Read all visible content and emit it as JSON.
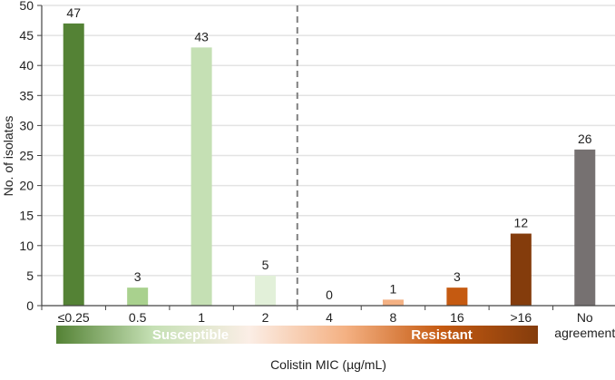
{
  "chart_data": {
    "type": "bar",
    "title": "",
    "xlabel": "Colistin MIC (µg/mL)",
    "ylabel": "No. of isolates",
    "ylim": [
      0,
      50
    ],
    "yticks": [
      0,
      5,
      10,
      15,
      20,
      25,
      30,
      35,
      40,
      45,
      50
    ],
    "grid": true,
    "categories": [
      "≤0.25",
      "0.5",
      "1",
      "2",
      "4",
      "8",
      "16",
      ">16",
      "No agreement"
    ],
    "category_lines": [
      [
        "≤0.25"
      ],
      [
        "0.5"
      ],
      [
        "1"
      ],
      [
        "2"
      ],
      [
        "4"
      ],
      [
        "8"
      ],
      [
        "16"
      ],
      [
        ">16"
      ],
      [
        "No",
        "agreement"
      ]
    ],
    "values": [
      47,
      3,
      43,
      5,
      0,
      1,
      3,
      12,
      26
    ],
    "colors": [
      "#548235",
      "#a9d18e",
      "#c5e0b4",
      "#e2f0d9",
      "#f8cbad",
      "#f4b183",
      "#c55a11",
      "#843c0c",
      "#767171"
    ],
    "breakpoint_between": [
      "2",
      "4"
    ],
    "scale_bar": {
      "susceptible_label": "Susceptible",
      "resistant_label": "Resistant",
      "gradient": [
        "#548235",
        "#c5e0b4",
        "#fbeee6",
        "#f4b183",
        "#c55a11",
        "#843c0c"
      ]
    }
  }
}
